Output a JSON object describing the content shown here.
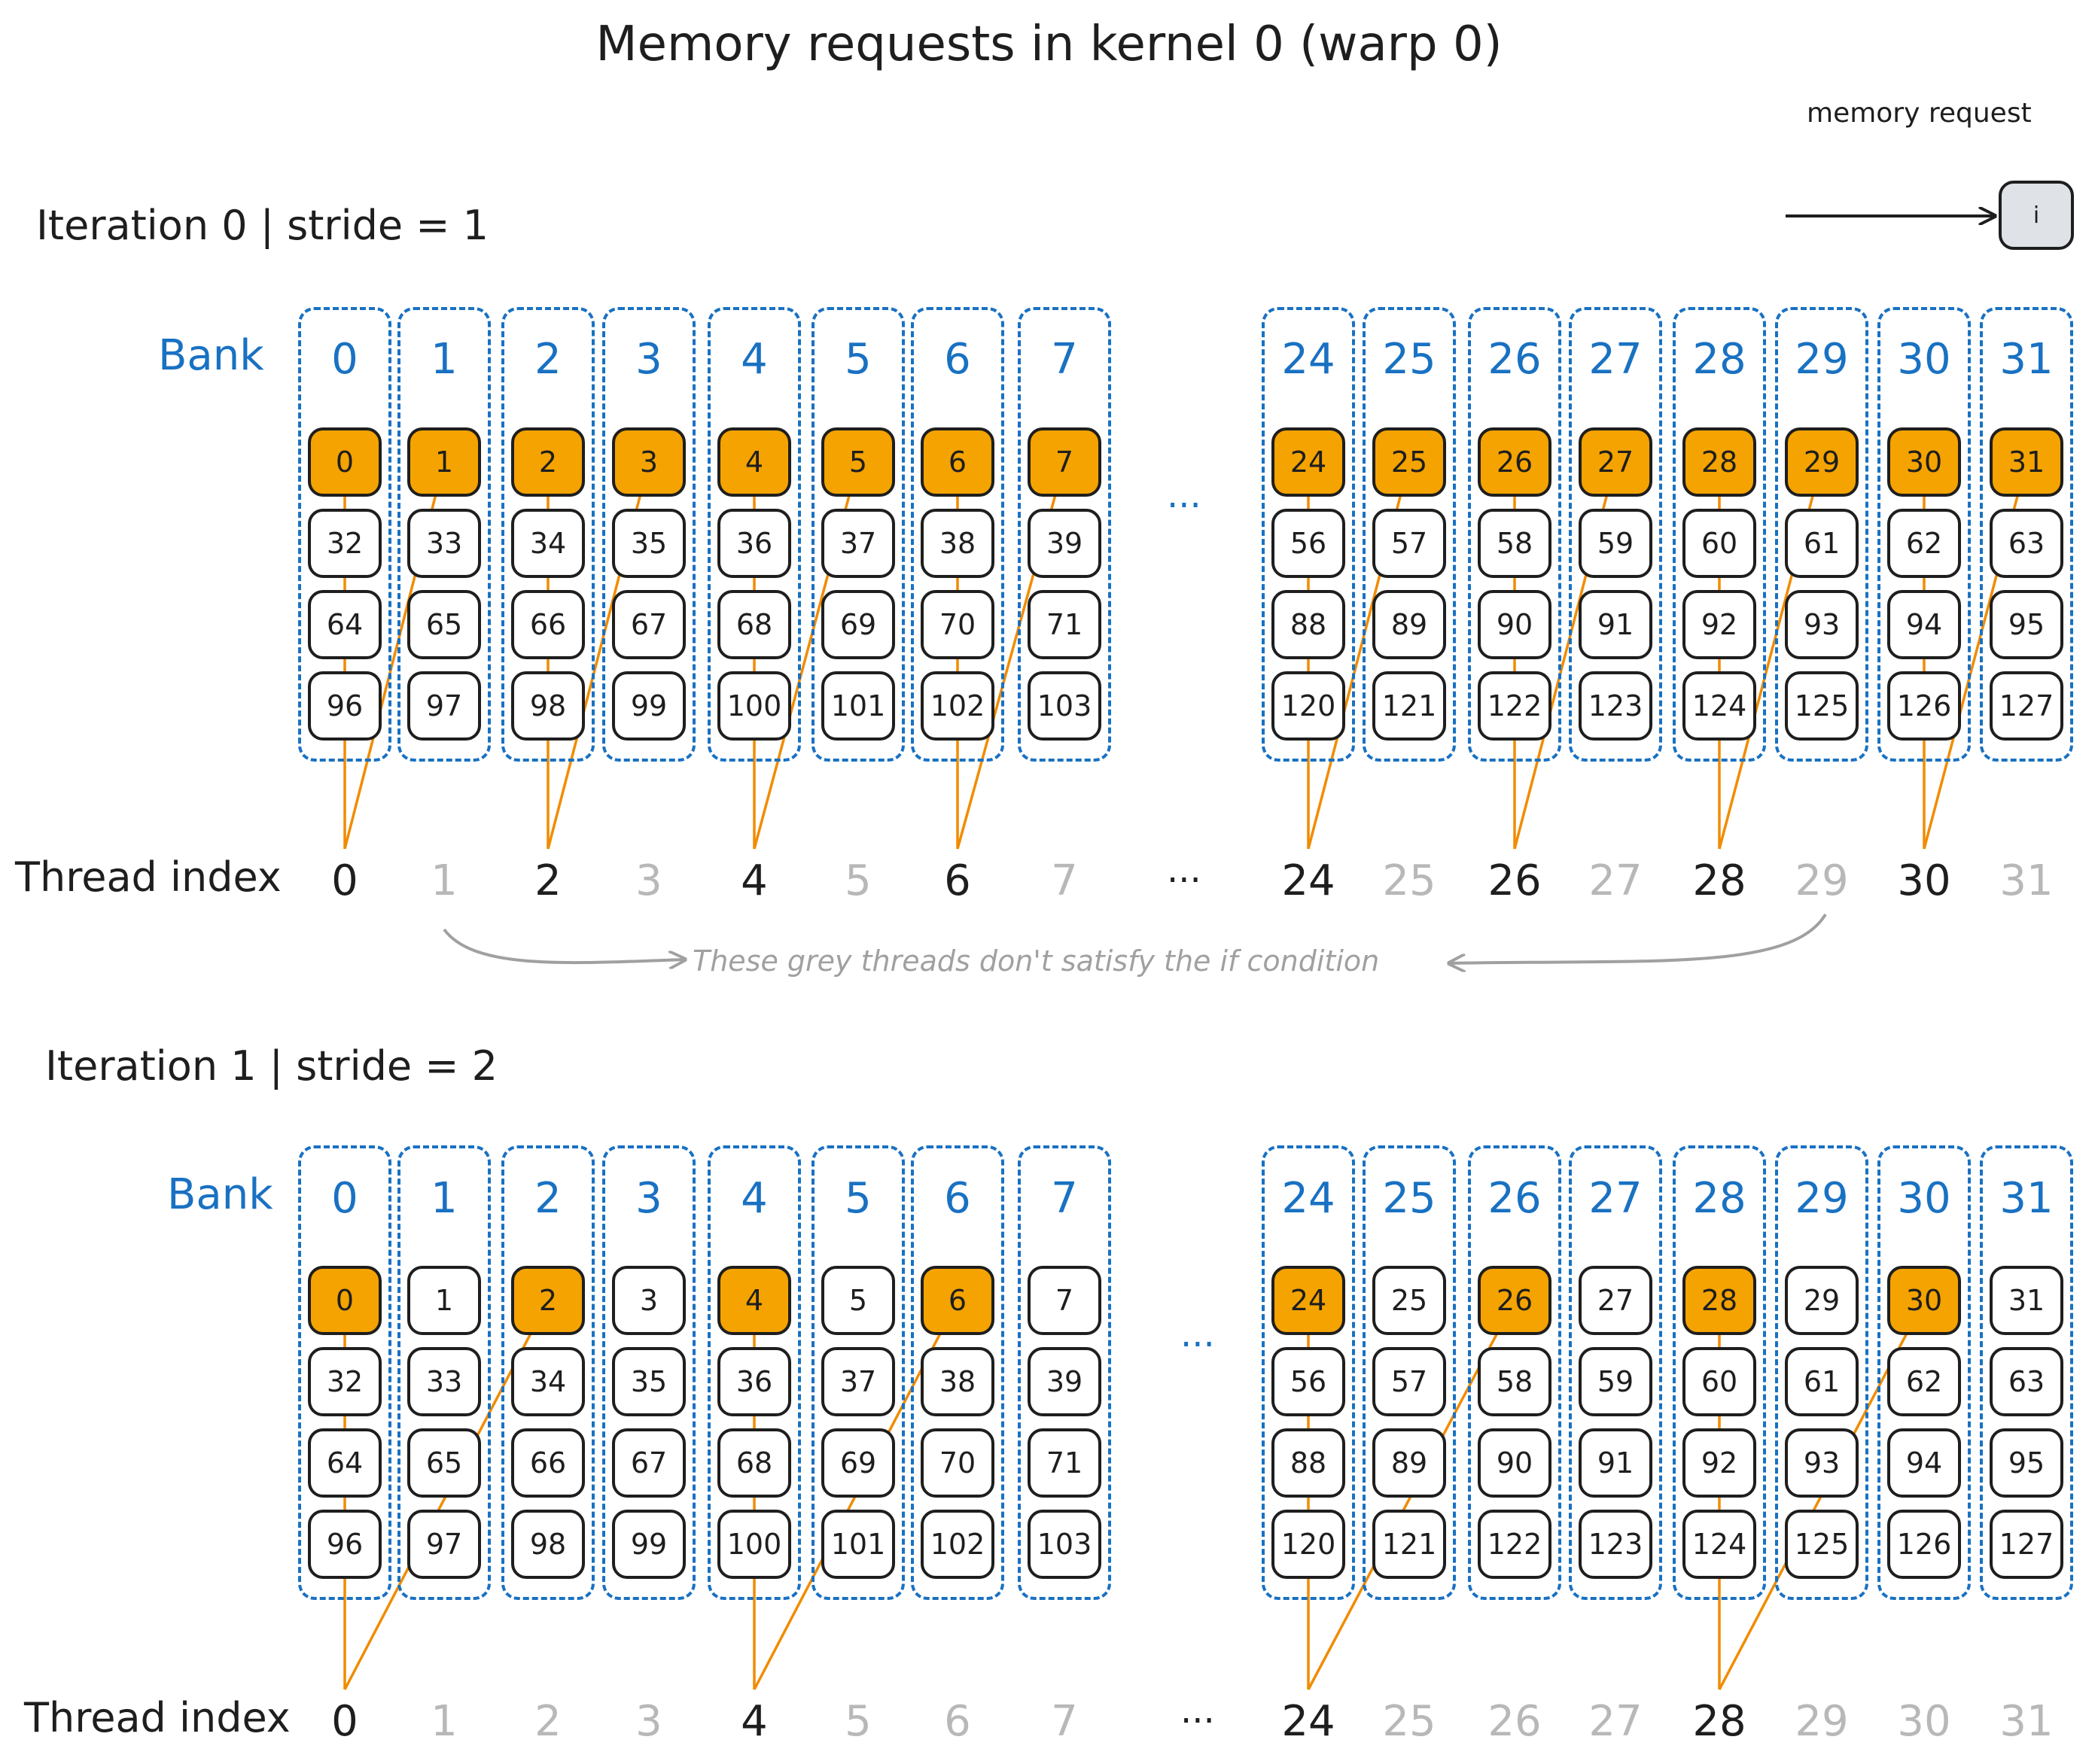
{
  "title": "Memory requests in kernel 0 (warp 0)",
  "legend": {
    "label": "memory request",
    "box_text": "i"
  },
  "bank_word": "Bank",
  "thread_word": "Thread index",
  "ellipsis": "...",
  "note": "These grey threads don't satisfy the if condition",
  "bank_numbers": [
    "0",
    "1",
    "2",
    "3",
    "4",
    "5",
    "6",
    "7",
    "24",
    "25",
    "26",
    "27",
    "28",
    "29",
    "30",
    "31"
  ],
  "iterations": [
    {
      "label": "Iteration 0 | stride = 1",
      "threads": [
        {
          "n": "0",
          "active": true
        },
        {
          "n": "1",
          "active": false
        },
        {
          "n": "2",
          "active": true
        },
        {
          "n": "3",
          "active": false
        },
        {
          "n": "4",
          "active": true
        },
        {
          "n": "5",
          "active": false
        },
        {
          "n": "6",
          "active": true
        },
        {
          "n": "7",
          "active": false
        },
        {
          "n": "24",
          "active": true
        },
        {
          "n": "25",
          "active": false
        },
        {
          "n": "26",
          "active": true
        },
        {
          "n": "27",
          "active": false
        },
        {
          "n": "28",
          "active": true
        },
        {
          "n": "29",
          "active": false
        },
        {
          "n": "30",
          "active": true
        },
        {
          "n": "31",
          "active": false
        }
      ],
      "highlighted_cells": [
        "0",
        "1",
        "2",
        "3",
        "4",
        "5",
        "6",
        "7",
        "24",
        "25",
        "26",
        "27",
        "28",
        "29",
        "30",
        "31"
      ],
      "requests": [
        {
          "thread": "0",
          "targets": [
            "0",
            "1"
          ]
        },
        {
          "thread": "2",
          "targets": [
            "2",
            "3"
          ]
        },
        {
          "thread": "4",
          "targets": [
            "4",
            "5"
          ]
        },
        {
          "thread": "6",
          "targets": [
            "6",
            "7"
          ]
        },
        {
          "thread": "24",
          "targets": [
            "24",
            "25"
          ]
        },
        {
          "thread": "26",
          "targets": [
            "26",
            "27"
          ]
        },
        {
          "thread": "28",
          "targets": [
            "28",
            "29"
          ]
        },
        {
          "thread": "30",
          "targets": [
            "30",
            "31"
          ]
        }
      ]
    },
    {
      "label": "Iteration 1 | stride = 2",
      "threads": [
        {
          "n": "0",
          "active": true
        },
        {
          "n": "1",
          "active": false
        },
        {
          "n": "2",
          "active": false
        },
        {
          "n": "3",
          "active": false
        },
        {
          "n": "4",
          "active": true
        },
        {
          "n": "5",
          "active": false
        },
        {
          "n": "6",
          "active": false
        },
        {
          "n": "7",
          "active": false
        },
        {
          "n": "24",
          "active": true
        },
        {
          "n": "25",
          "active": false
        },
        {
          "n": "26",
          "active": false
        },
        {
          "n": "27",
          "active": false
        },
        {
          "n": "28",
          "active": true
        },
        {
          "n": "29",
          "active": false
        },
        {
          "n": "30",
          "active": false
        },
        {
          "n": "31",
          "active": false
        }
      ],
      "highlighted_cells": [
        "0",
        "2",
        "4",
        "6",
        "24",
        "26",
        "28",
        "30"
      ],
      "requests": [
        {
          "thread": "0",
          "targets": [
            "0",
            "2"
          ]
        },
        {
          "thread": "4",
          "targets": [
            "4",
            "6"
          ]
        },
        {
          "thread": "24",
          "targets": [
            "24",
            "26"
          ]
        },
        {
          "thread": "28",
          "targets": [
            "28",
            "30"
          ]
        }
      ]
    }
  ],
  "colors": {
    "bank": "#1971c2",
    "highlight": "#f5a300",
    "arrow": "#f08c00",
    "grey": "#b8b8b8"
  }
}
